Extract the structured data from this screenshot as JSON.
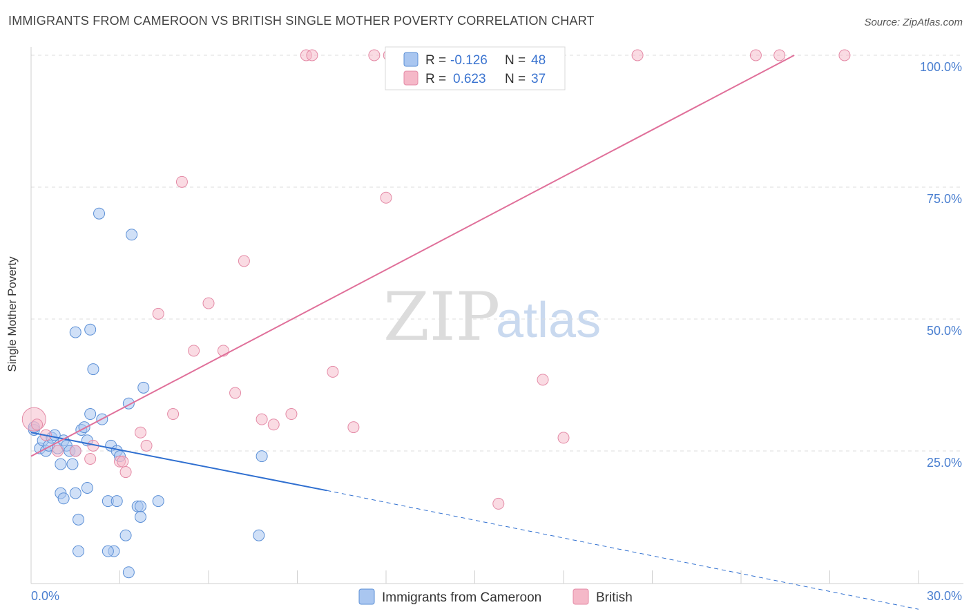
{
  "header": {
    "title": "IMMIGRANTS FROM CAMEROON VS BRITISH SINGLE MOTHER POVERTY CORRELATION CHART",
    "source": "Source: ZipAtlas.com"
  },
  "watermark": {
    "zip": "ZIP",
    "atlas": "atlas"
  },
  "legend_box": {
    "rows": [
      {
        "r_label": "R =",
        "r_value": "-0.126",
        "n_label": "N =",
        "n_value": "48",
        "color": "#a9c6f0"
      },
      {
        "r_label": "R =",
        "r_value": "0.623",
        "n_label": "N =",
        "n_value": "37",
        "color": "#f5b8c8"
      }
    ]
  },
  "bottom_legend": {
    "items": [
      {
        "label": "Immigrants from Cameroon",
        "color": "#a9c6f0"
      },
      {
        "label": "British",
        "color": "#f5b8c8"
      }
    ]
  },
  "colors": {
    "blue_fill": "#a9c6f0",
    "blue_stroke": "#5b8fd6",
    "blue_line": "#2f6fd0",
    "pink_fill": "#f5b8c8",
    "pink_stroke": "#e48aa6",
    "pink_line": "#e0709a",
    "grid": "#dcdcdc",
    "tick_text": "#4a7fd0"
  },
  "chart_data": {
    "type": "scatter",
    "title": "IMMIGRANTS FROM CAMEROON VS BRITISH SINGLE MOTHER POVERTY CORRELATION CHART",
    "xlabel": "",
    "ylabel": "Single Mother Poverty",
    "xlim": [
      0,
      30
    ],
    "ylim": [
      0,
      100
    ],
    "x_ticks": [
      "0.0%",
      "30.0%"
    ],
    "y_ticks": [
      {
        "value": 25,
        "label": "25.0%"
      },
      {
        "value": 50,
        "label": "50.0%"
      },
      {
        "value": 75,
        "label": "75.0%"
      },
      {
        "value": 100,
        "label": "100.0%"
      }
    ],
    "grid": true,
    "legend_position": "top-center",
    "series": [
      {
        "name": "Immigrants from Cameroon",
        "r": -0.126,
        "n": 48,
        "trend": {
          "x": [
            0,
            10
          ],
          "y": [
            28.5,
            17.5
          ],
          "dashed_to": [
            30,
            -5
          ]
        },
        "points": [
          [
            0.1,
            29
          ],
          [
            0.3,
            25.5
          ],
          [
            0.4,
            27
          ],
          [
            0.5,
            25
          ],
          [
            0.6,
            26
          ],
          [
            0.7,
            27.5
          ],
          [
            0.8,
            28
          ],
          [
            0.9,
            25.5
          ],
          [
            1.0,
            22.5
          ],
          [
            1.0,
            17
          ],
          [
            1.1,
            16
          ],
          [
            1.1,
            27
          ],
          [
            1.2,
            26
          ],
          [
            1.3,
            25
          ],
          [
            1.4,
            22.5
          ],
          [
            1.5,
            25
          ],
          [
            1.5,
            47.5
          ],
          [
            1.5,
            17
          ],
          [
            1.6,
            12
          ],
          [
            1.6,
            6
          ],
          [
            1.7,
            29
          ],
          [
            1.8,
            29.5
          ],
          [
            1.9,
            27
          ],
          [
            1.9,
            18
          ],
          [
            2.0,
            48
          ],
          [
            2.0,
            32
          ],
          [
            2.1,
            40.5
          ],
          [
            2.3,
            70
          ],
          [
            2.4,
            31
          ],
          [
            2.6,
            15.5
          ],
          [
            2.7,
            26
          ],
          [
            2.8,
            6
          ],
          [
            2.9,
            15.5
          ],
          [
            2.9,
            25
          ],
          [
            3.0,
            24
          ],
          [
            3.2,
            9
          ],
          [
            3.3,
            2
          ],
          [
            3.3,
            34
          ],
          [
            3.4,
            66
          ],
          [
            3.6,
            14.5
          ],
          [
            3.7,
            14.5
          ],
          [
            3.7,
            12.5
          ],
          [
            3.8,
            37
          ],
          [
            4.3,
            15.5
          ],
          [
            7.8,
            24
          ],
          [
            7.7,
            9
          ],
          [
            0.1,
            29.5
          ],
          [
            2.6,
            6
          ]
        ]
      },
      {
        "name": "British",
        "r": 0.623,
        "n": 37,
        "trend": {
          "x": [
            0,
            25.8
          ],
          "y": [
            24,
            100
          ]
        },
        "points": [
          [
            0.1,
            31
          ],
          [
            0.5,
            28
          ],
          [
            0.9,
            25
          ],
          [
            1.5,
            25
          ],
          [
            2.0,
            23.5
          ],
          [
            2.1,
            26
          ],
          [
            3.0,
            23
          ],
          [
            3.1,
            23
          ],
          [
            3.2,
            21
          ],
          [
            3.7,
            28.5
          ],
          [
            3.9,
            26
          ],
          [
            4.3,
            51
          ],
          [
            4.8,
            32
          ],
          [
            5.1,
            76
          ],
          [
            5.5,
            44
          ],
          [
            6.0,
            53
          ],
          [
            6.5,
            44
          ],
          [
            6.9,
            36
          ],
          [
            7.2,
            61
          ],
          [
            7.8,
            31
          ],
          [
            8.2,
            30
          ],
          [
            8.8,
            32
          ],
          [
            9.3,
            100
          ],
          [
            9.5,
            100
          ],
          [
            10.2,
            40
          ],
          [
            10.9,
            29.5
          ],
          [
            11.6,
            100
          ],
          [
            12.0,
            73
          ],
          [
            12.1,
            100
          ],
          [
            15.8,
            15
          ],
          [
            17.3,
            38.5
          ],
          [
            18.0,
            27.5
          ],
          [
            20.5,
            100
          ],
          [
            24.5,
            100
          ],
          [
            25.3,
            100
          ],
          [
            27.5,
            100
          ],
          [
            0.2,
            30
          ]
        ]
      }
    ]
  }
}
